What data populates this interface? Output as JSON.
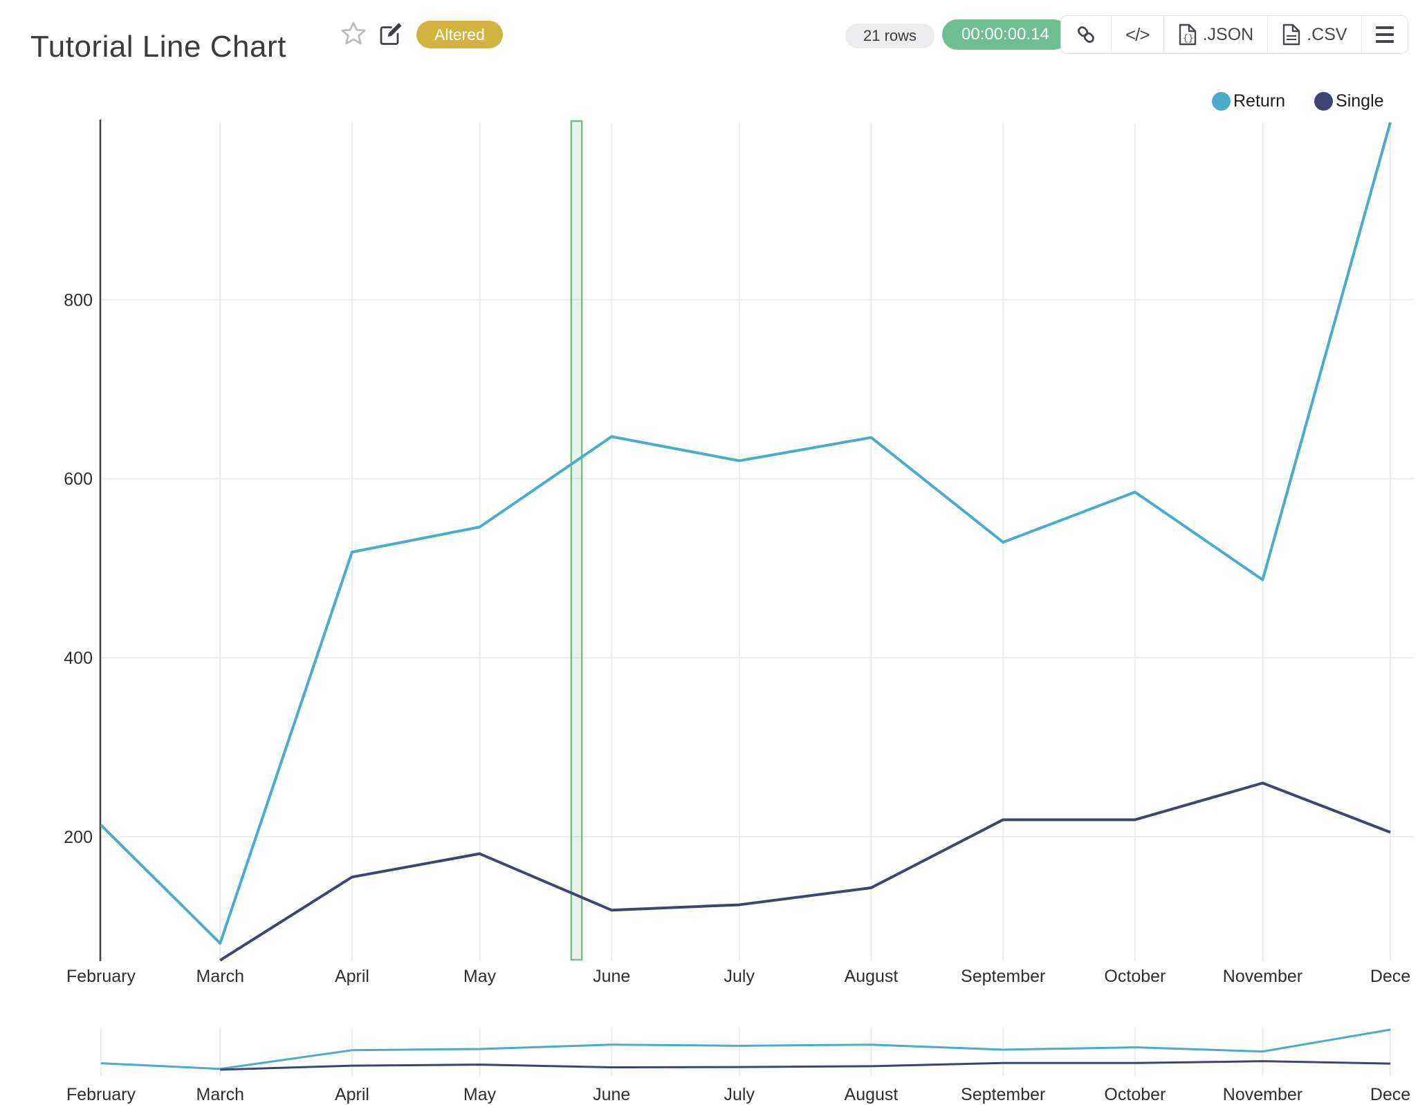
{
  "header": {
    "title": "Tutorial Line Chart",
    "badge": "Altered",
    "badge_color": "#d2b240",
    "rows_pill": "21 rows",
    "timer_pill": "00:00:00.14",
    "timer_color": "#6fbe8f",
    "code_glyph": "</>",
    "export_json_label": ".JSON",
    "export_csv_label": ".CSV",
    "icons": [
      "star-icon",
      "edit-icon",
      "link-icon",
      "code-icon",
      "file-json-icon",
      "file-csv-icon",
      "menu-icon"
    ]
  },
  "legend": {
    "items": [
      {
        "label": "Return",
        "color": "#4aabcb"
      },
      {
        "label": "Single",
        "color": "#3f4571"
      }
    ]
  },
  "chart_data": {
    "type": "line",
    "categories": [
      "February",
      "March",
      "April",
      "May",
      "June",
      "July",
      "August",
      "September",
      "October",
      "November",
      "December"
    ],
    "x_tick_labels": [
      "February",
      "March",
      "April",
      "May",
      "June",
      "July",
      "August",
      "September",
      "October",
      "November",
      "Dece"
    ],
    "day_offsets": [
      0,
      28,
      59,
      89,
      120,
      150,
      181,
      212,
      243,
      273,
      303
    ],
    "series": [
      {
        "name": "Return",
        "color": "#4aabcb",
        "values": [
          213,
          81,
          518,
          546,
          647,
          620,
          646,
          529,
          585,
          487,
          998
        ]
      },
      {
        "name": "Single",
        "color": "#3f4571",
        "values": [
          null,
          62,
          155,
          181,
          118,
          124,
          143,
          219,
          219,
          260,
          205
        ]
      }
    ],
    "title": "Tutorial Line Chart",
    "xlabel": "",
    "ylabel": "",
    "ylim": [
      61,
      998
    ],
    "yticks": [
      200,
      400,
      600,
      800
    ],
    "grid": true,
    "legend_position": "top-right",
    "annotation_band": {
      "day_start": 110.5,
      "day_end": 113.0,
      "fill": "rgba(114,189,133,0.16)",
      "stroke": "#72bd85"
    },
    "grid_color": "#e9e9e9",
    "axis_color": "#444444",
    "navigator": {
      "present": true,
      "tick_labels": [
        "February",
        "March",
        "April",
        "May",
        "June",
        "July",
        "August",
        "September",
        "October",
        "November",
        "Dece"
      ]
    }
  }
}
